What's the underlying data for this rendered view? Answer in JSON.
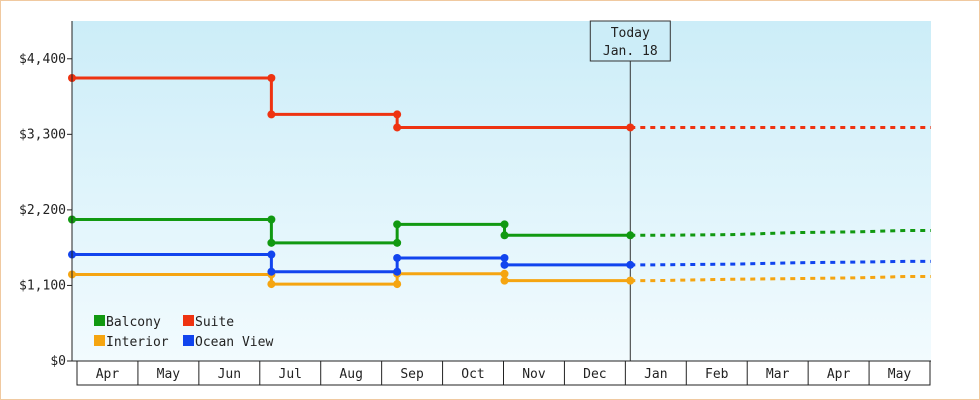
{
  "chart_data": {
    "type": "line",
    "style": "step",
    "ylim": [
      0,
      4950
    ],
    "y_ticks": [
      {
        "value": 0,
        "label": "$0"
      },
      {
        "value": 1100,
        "label": "$1,100"
      },
      {
        "value": 2200,
        "label": "$2,200"
      },
      {
        "value": 3300,
        "label": "$3,300"
      },
      {
        "value": 4400,
        "label": "$4,400"
      }
    ],
    "month_labels": [
      "Apr",
      "May",
      "Jun",
      "Jul",
      "Aug",
      "Sep",
      "Oct",
      "Nov",
      "Dec",
      "Jan",
      "Feb",
      "Mar",
      "Apr",
      "May"
    ],
    "legend": {
      "placement": "bottom-left"
    },
    "today": {
      "line1": "Today",
      "line2": "Jan. 18",
      "x": 9.1
    },
    "colors": {
      "background_top": "#ccedf8",
      "background_bottom": "#f2fbfe",
      "frame_border": "#f0c9a0",
      "axis": "#222222"
    },
    "series": [
      {
        "name": "Balcony",
        "color": "#119911",
        "points": [
          [
            0,
            2060
          ],
          [
            3.25,
            2060
          ],
          [
            3.25,
            1720
          ],
          [
            5.3,
            1720
          ],
          [
            5.3,
            1990
          ],
          [
            7.05,
            1990
          ],
          [
            7.05,
            1830
          ],
          [
            9.1,
            1830
          ]
        ],
        "projection": [
          [
            9.1,
            1830
          ],
          [
            9.5,
            1830
          ],
          [
            10.75,
            1840
          ],
          [
            11.8,
            1870
          ],
          [
            12.75,
            1880
          ],
          [
            13.6,
            1900
          ],
          [
            14.0,
            1900
          ]
        ]
      },
      {
        "name": "Suite",
        "color": "#ee3311",
        "points": [
          [
            0,
            4120
          ],
          [
            3.25,
            4120
          ],
          [
            3.25,
            3590
          ],
          [
            5.3,
            3590
          ],
          [
            5.3,
            3400
          ],
          [
            9.1,
            3400
          ]
        ],
        "projection": [
          [
            9.1,
            3400
          ],
          [
            14.0,
            3400
          ]
        ]
      },
      {
        "name": "Interior",
        "color": "#f5a511",
        "points": [
          [
            0,
            1260
          ],
          [
            3.25,
            1260
          ],
          [
            3.25,
            1120
          ],
          [
            5.3,
            1120
          ],
          [
            5.3,
            1270
          ],
          [
            7.05,
            1270
          ],
          [
            7.05,
            1170
          ],
          [
            9.1,
            1170
          ]
        ],
        "projection": [
          [
            9.1,
            1170
          ],
          [
            9.5,
            1170
          ],
          [
            10.75,
            1190
          ],
          [
            11.8,
            1200
          ],
          [
            12.75,
            1210
          ],
          [
            13.6,
            1230
          ],
          [
            14.0,
            1230
          ]
        ]
      },
      {
        "name": "Ocean View",
        "color": "#1144ee",
        "points": [
          [
            0,
            1550
          ],
          [
            3.25,
            1550
          ],
          [
            3.25,
            1300
          ],
          [
            5.3,
            1300
          ],
          [
            5.3,
            1500
          ],
          [
            7.05,
            1500
          ],
          [
            7.05,
            1400
          ],
          [
            9.1,
            1400
          ]
        ],
        "projection": [
          [
            9.1,
            1400
          ],
          [
            9.5,
            1400
          ],
          [
            10.75,
            1410
          ],
          [
            11.8,
            1430
          ],
          [
            12.75,
            1440
          ],
          [
            13.6,
            1450
          ],
          [
            14.0,
            1450
          ]
        ]
      }
    ]
  }
}
